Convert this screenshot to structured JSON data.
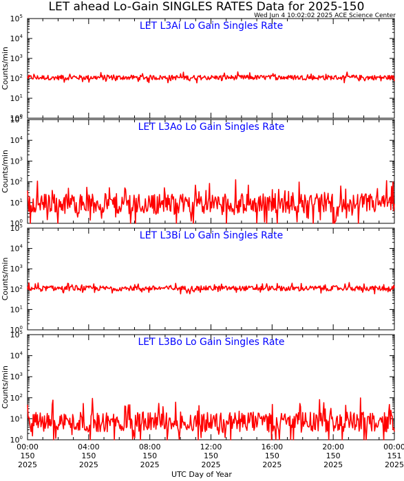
{
  "header": {
    "title": "LET ahead Lo-Gain SINGLES RATES Data for 2025-150",
    "timestamp": "Wed Jun  4 10:02:02 2025 ACE Science Center"
  },
  "colors": {
    "series": "#ff0000",
    "panel_label": "#0000ff",
    "axes": "#000000"
  },
  "chart_data": [
    {
      "type": "line",
      "title": "LET L3Ai Lo Gain Singles Rate",
      "ylabel": "Counts/min",
      "yscale": "log",
      "ylim": [
        1,
        100000
      ],
      "xlim": [
        0,
        24
      ],
      "series": [
        {
          "baseline": 110,
          "noise": 0.04,
          "spikes_every_h": 1.6,
          "spike_value": 140
        }
      ]
    },
    {
      "type": "line",
      "title": "LET L3Ao Lo Gain Singles Rate",
      "ylabel": "Counts/min",
      "yscale": "log",
      "ylim": [
        1,
        100000
      ],
      "xlim": [
        0,
        24
      ],
      "series": [
        {
          "baseline": 9,
          "noise": 0.16,
          "spikes_every_h": 1.6,
          "spike_value": 45
        }
      ]
    },
    {
      "type": "line",
      "title": "LET L3Bi Lo Gain Singles Rate",
      "ylabel": "Counts/min",
      "yscale": "log",
      "ylim": [
        1,
        100000
      ],
      "xlim": [
        0,
        24
      ],
      "series": [
        {
          "baseline": 110,
          "noise": 0.04,
          "spikes_every_h": 1.6,
          "spike_value": 140
        }
      ]
    },
    {
      "type": "line",
      "title": "LET L3Bo Lo Gain Singles Rate",
      "ylabel": "Counts/min",
      "yscale": "log",
      "ylim": [
        1,
        100000
      ],
      "xlim": [
        0,
        24
      ],
      "series": [
        {
          "baseline": 7,
          "noise": 0.16,
          "spikes_every_h": 1.6,
          "spike_value": 50
        }
      ]
    }
  ],
  "y_ticks": [
    {
      "base": "10",
      "exp": "0"
    },
    {
      "base": "10",
      "exp": "1"
    },
    {
      "base": "10",
      "exp": "2"
    },
    {
      "base": "10",
      "exp": "3"
    },
    {
      "base": "10",
      "exp": "4"
    },
    {
      "base": "10",
      "exp": "5"
    }
  ],
  "x_axis": {
    "label": "UTC Day of Year",
    "ticks": [
      {
        "time": "00:00",
        "doy": "150",
        "year": "2025"
      },
      {
        "time": "04:00",
        "doy": "150",
        "year": "2025"
      },
      {
        "time": "08:00",
        "doy": "150",
        "year": "2025"
      },
      {
        "time": "12:00",
        "doy": "150",
        "year": "2025"
      },
      {
        "time": "16:00",
        "doy": "150",
        "year": "2025"
      },
      {
        "time": "20:00",
        "doy": "150",
        "year": "2025"
      },
      {
        "time": "00:00",
        "doy": "151",
        "year": "2025"
      }
    ]
  }
}
